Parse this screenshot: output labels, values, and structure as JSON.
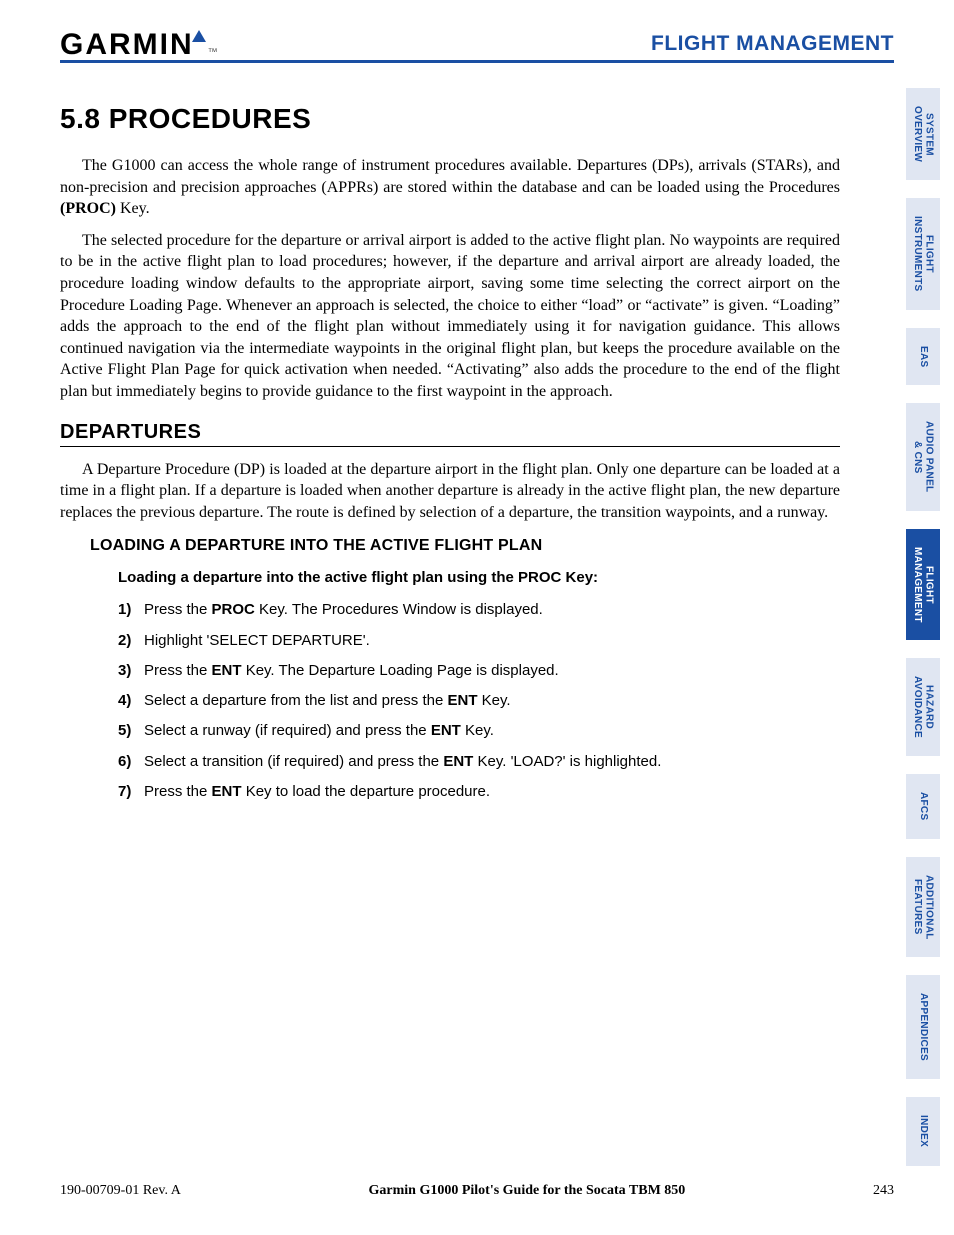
{
  "header": {
    "logo_text": "GARMIN",
    "title": "FLIGHT MANAGEMENT"
  },
  "tabs": [
    {
      "label": "SYSTEM\nOVERVIEW",
      "active": false
    },
    {
      "label": "FLIGHT\nINSTRUMENTS",
      "active": false
    },
    {
      "label": "EAS",
      "active": false
    },
    {
      "label": "AUDIO PANEL\n& CNS",
      "active": false
    },
    {
      "label": "FLIGHT\nMANAGEMENT",
      "active": true
    },
    {
      "label": "HAZARD\nAVOIDANCE",
      "active": false
    },
    {
      "label": "AFCS",
      "active": false
    },
    {
      "label": "ADDITIONAL\nFEATURES",
      "active": false
    },
    {
      "label": "APPENDICES",
      "active": false
    },
    {
      "label": "INDEX",
      "active": false
    }
  ],
  "section_title": "5.8  PROCEDURES",
  "para1_a": "The G1000 can access the whole range of instrument procedures available. Departures (DPs), arrivals (STARs), and non-precision and precision approaches (APPRs) are stored within the database and can be loaded using the Procedures ",
  "para1_b": "(PROC)",
  "para1_c": " Key.",
  "para2": "The selected procedure for the departure or arrival airport is added to the active flight plan.  No waypoints are required to be in the active flight plan to load procedures; however, if the departure and arrival airport are already loaded, the procedure loading window defaults to the appropriate airport, saving some time selecting the correct airport on the Procedure Loading Page.  Whenever an approach is selected, the choice to either “load” or “activate” is given.  “Loading” adds the approach to the end of the flight plan without immediately using it for navigation guidance. This allows continued navigation via the intermediate waypoints in the original flight plan, but keeps the procedure available on the Active Flight Plan Page for quick activation when needed. “Activating” also adds the procedure to the end of the flight plan but immediately begins to provide guidance to the first waypoint in the approach.",
  "sub_title": "DEPARTURES",
  "para3": "A Departure Procedure (DP) is loaded at the departure airport in the flight plan. Only one departure can be loaded at a time in a flight plan.  If a departure is loaded when another departure is already in the active flight plan, the new departure replaces the previous departure.  The route is defined by selection of a departure, the transition waypoints, and a runway.",
  "subsub_title": "LOADING A DEPARTURE INTO THE ACTIVE FLIGHT PLAN",
  "leadline": {
    "a": "Loading a departure into the active flight plan using the ",
    "b": "PROC",
    "c": " Key:"
  },
  "steps": [
    {
      "n": "1)",
      "pre": "Press the ",
      "b": "PROC",
      "post": " Key.  The Procedures Window is displayed."
    },
    {
      "n": "2)",
      "pre": "Highlight 'SELECT DEPARTURE'.",
      "b": "",
      "post": ""
    },
    {
      "n": "3)",
      "pre": "Press the ",
      "b": "ENT",
      "post": " Key.  The Departure Loading Page is displayed."
    },
    {
      "n": "4)",
      "pre": "Select a departure from the list and press the ",
      "b": "ENT",
      "post": " Key."
    },
    {
      "n": "5)",
      "pre": "Select a runway (if required) and press the ",
      "b": "ENT",
      "post": " Key."
    },
    {
      "n": "6)",
      "pre": "Select a transition (if required) and press the ",
      "b": "ENT",
      "post": " Key. 'LOAD?' is highlighted."
    },
    {
      "n": "7)",
      "pre": "Press the ",
      "b": "ENT",
      "post": " Key to load the departure procedure."
    }
  ],
  "footer": {
    "rev": "190-00709-01  Rev. A",
    "guide": "Garmin G1000 Pilot's Guide for the Socata TBM 850",
    "page": "243"
  },
  "style": {
    "accent": "#1a4fa3",
    "tab_bg": "#e0e6f2",
    "tab_fg": "#1a4fa3",
    "tab_active_bg": "#1a4fa3",
    "tab_active_fg": "#ffffff"
  }
}
